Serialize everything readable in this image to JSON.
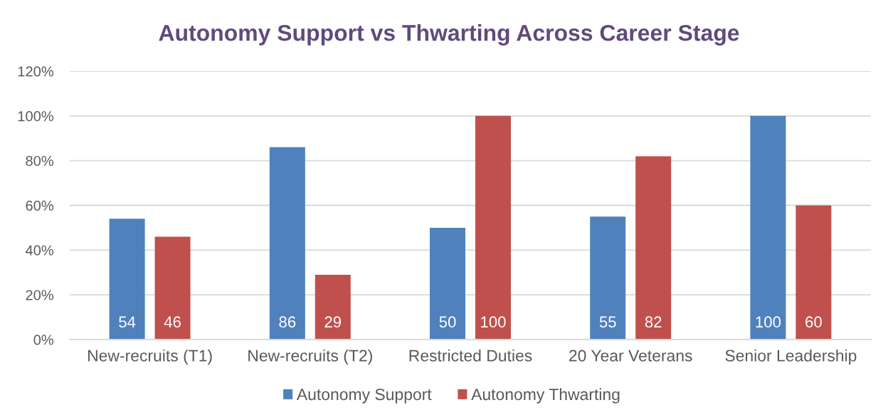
{
  "chart_data": {
    "type": "bar",
    "title": "Autonomy Support vs Thwarting Across Career Stage",
    "categories": [
      "New-recruits (T1)",
      "New-recruits (T2)",
      "Restricted Duties",
      "20 Year Veterans",
      "Senior Leadership"
    ],
    "series": [
      {
        "name": "Autonomy Support",
        "color": "#4f81bd",
        "values": [
          54,
          86,
          50,
          55,
          100
        ]
      },
      {
        "name": "Autonomy Thwarting",
        "color": "#c0504d",
        "values": [
          46,
          29,
          100,
          82,
          60
        ]
      }
    ],
    "ylim": [
      0,
      120
    ],
    "yticks": [
      {
        "value": 0,
        "label": "0%"
      },
      {
        "value": 20,
        "label": "20%"
      },
      {
        "value": 40,
        "label": "40%"
      },
      {
        "value": 60,
        "label": "60%"
      },
      {
        "value": 80,
        "label": "80%"
      },
      {
        "value": 100,
        "label": "100%"
      },
      {
        "value": 120,
        "label": "120%"
      }
    ],
    "grid": "y",
    "legend": "bottom",
    "data_labels": true
  }
}
